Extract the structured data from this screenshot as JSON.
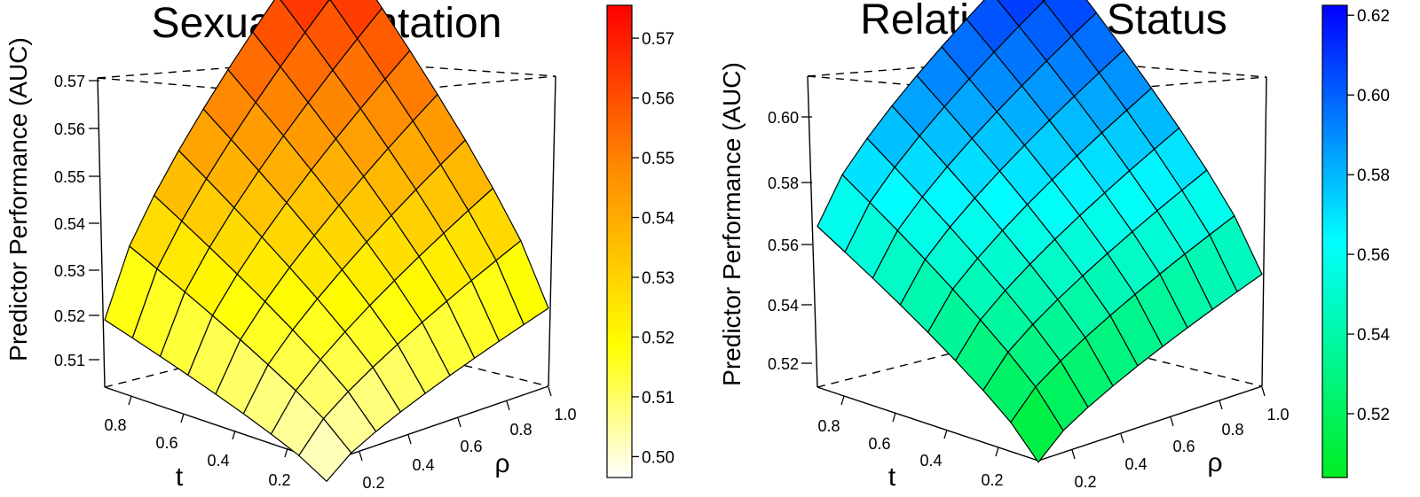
{
  "chart_data": [
    {
      "type": "surface",
      "title": "Sexual Orientation",
      "zlabel": "Predictor Performance (AUC)",
      "xlabel": "t",
      "ylabel": "ρ",
      "x_ticks": [
        "0.2",
        "0.4",
        "0.6",
        "0.8"
      ],
      "y_ticks": [
        "0.2",
        "0.4",
        "0.6",
        "0.8",
        "1.0"
      ],
      "z_ticks": [
        "0.51",
        "0.52",
        "0.53",
        "0.54",
        "0.55",
        "0.56",
        "0.57"
      ],
      "colorbar_ticks": [
        "0.50",
        "0.51",
        "0.52",
        "0.53",
        "0.54",
        "0.55",
        "0.56",
        "0.57"
      ],
      "colorbar_range": [
        0.4965,
        0.5755
      ],
      "zlim": [
        0.5035,
        0.571
      ],
      "colorscale": [
        "#ffffff",
        "#ffff00",
        "#ff8c00",
        "#ff0000"
      ],
      "t": [
        0.1,
        0.2,
        0.3,
        0.4,
        0.5,
        0.6,
        0.7,
        0.8,
        0.9
      ],
      "rho": [
        0.1,
        0.2,
        0.3,
        0.4,
        0.5,
        0.6,
        0.7,
        0.8,
        0.9,
        1.0
      ],
      "z_corners": {
        "t_min_rho_min": 0.5,
        "t_max_rho_min": 0.516,
        "t_min_rho_max": 0.518,
        "t_max_rho_max": 0.575
      },
      "grid": false
    },
    {
      "type": "surface",
      "title": "Relationship Status",
      "zlabel": "Predictor Performance (AUC)",
      "xlabel": "t",
      "ylabel": "ρ",
      "x_ticks": [
        "0.2",
        "0.4",
        "0.6",
        "0.8"
      ],
      "y_ticks": [
        "0.2",
        "0.4",
        "0.6",
        "0.8",
        "1.0"
      ],
      "z_ticks": [
        "0.52",
        "0.54",
        "0.56",
        "0.58",
        "0.60"
      ],
      "colorbar_ticks": [
        "0.52",
        "0.54",
        "0.56",
        "0.58",
        "0.60",
        "0.62"
      ],
      "colorbar_range": [
        0.504,
        0.6225
      ],
      "zlim": [
        0.5055,
        0.6138
      ],
      "colorscale": [
        "#00ee22",
        "#00ffff",
        "#0000ff"
      ],
      "t": [
        0.1,
        0.2,
        0.3,
        0.4,
        0.5,
        0.6,
        0.7,
        0.8,
        0.9
      ],
      "rho": [
        0.1,
        0.2,
        0.3,
        0.4,
        0.5,
        0.6,
        0.7,
        0.8,
        0.9,
        1.0
      ],
      "z_corners": {
        "t_min_rho_min": 0.505,
        "t_max_rho_min": 0.555,
        "t_min_rho_max": 0.54,
        "t_max_rho_max": 0.62
      },
      "grid": false
    }
  ]
}
